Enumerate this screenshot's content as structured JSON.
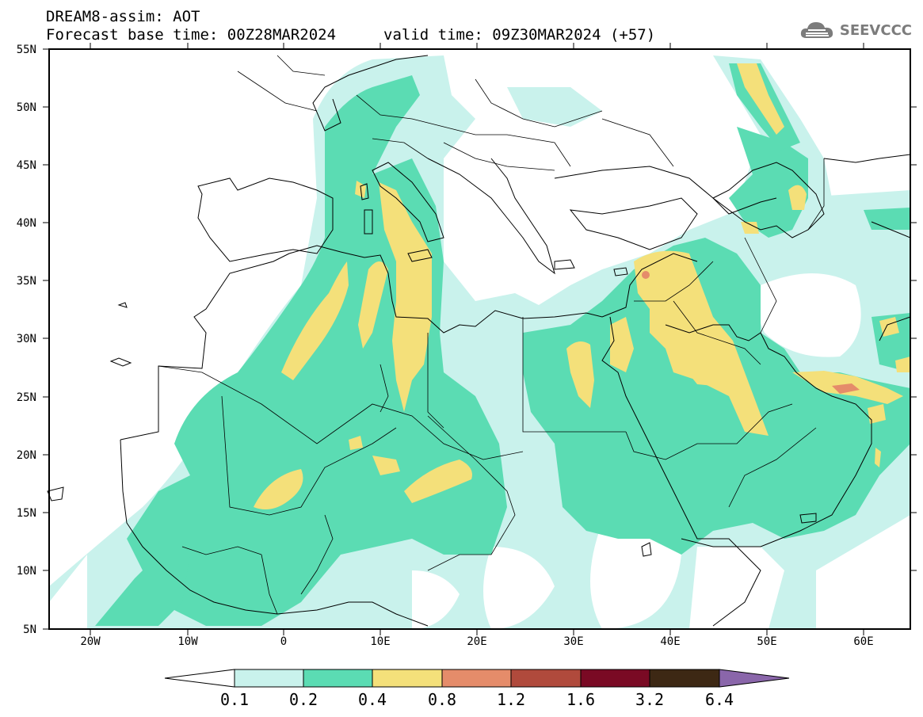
{
  "header": {
    "line1": "DREAM8-assim: AOT",
    "line2": "Forecast base time: 00Z28MAR2024",
    "valid": "valid time: 09Z30MAR2024 (+57)"
  },
  "logo": {
    "text": "SEEVCCC",
    "icon": "cloud-icon"
  },
  "map": {
    "lat_labels": [
      "55N",
      "50N",
      "45N",
      "40N",
      "35N",
      "30N",
      "25N",
      "20N",
      "15N",
      "10N",
      "5N"
    ],
    "lon_labels": [
      "20W",
      "10W",
      "0",
      "10E",
      "20E",
      "30E",
      "40E",
      "50E",
      "60E"
    ]
  },
  "colorbar": {
    "ticks": [
      "0.1",
      "0.2",
      "0.4",
      "0.8",
      "1.2",
      "1.6",
      "3.2",
      "6.4"
    ],
    "colors": [
      "#ffffff",
      "#c9f2ec",
      "#5bdcb3",
      "#f4e07a",
      "#e58c6a",
      "#b04a3c",
      "#7a0a24",
      "#3d2814",
      "#8a66aa"
    ]
  },
  "colors": {
    "aot_0_1": "#c9f2ec",
    "aot_0_2": "#5bdcb3",
    "aot_0_4": "#f4e07a",
    "aot_0_8": "#e58c6a"
  }
}
